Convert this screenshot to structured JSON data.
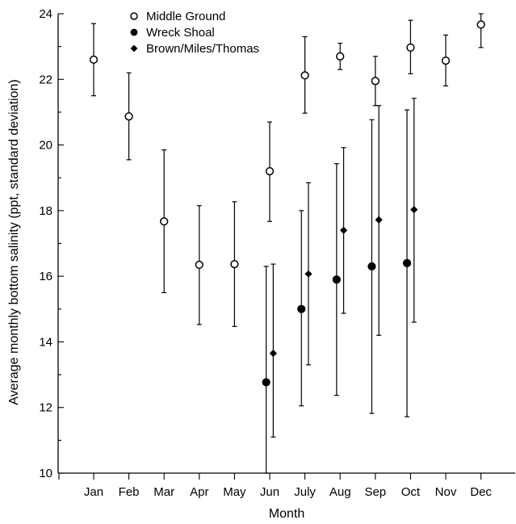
{
  "chart_data": {
    "type": "scatter",
    "xlabel": "Month",
    "ylabel": "Average monthly bottom salinity (ppt, standard deviation)",
    "categories": [
      "Jan",
      "Feb",
      "Mar",
      "Apr",
      "May",
      "Jun",
      "July",
      "Aug",
      "Sep",
      "Oct",
      "Nov",
      "Dec"
    ],
    "ylim": [
      10,
      24
    ],
    "yticks": [
      "10",
      "12",
      "14",
      "16",
      "18",
      "20",
      "22",
      "24"
    ],
    "grid": false,
    "legend_position": "top-left",
    "series": [
      {
        "name": "Middle Ground",
        "marker": "open-circle",
        "points": [
          {
            "month": "Jan",
            "mean": 22.6,
            "low": 21.5,
            "high": 23.7
          },
          {
            "month": "Feb",
            "mean": 20.87,
            "low": 19.55,
            "high": 22.2
          },
          {
            "month": "Mar",
            "mean": 17.67,
            "low": 15.5,
            "high": 19.85
          },
          {
            "month": "Apr",
            "mean": 16.35,
            "low": 14.53,
            "high": 18.15
          },
          {
            "month": "May",
            "mean": 16.37,
            "low": 14.47,
            "high": 18.27
          },
          {
            "month": "Jun",
            "mean": 19.2,
            "low": 17.67,
            "high": 20.7
          },
          {
            "month": "July",
            "mean": 22.12,
            "low": 20.97,
            "high": 23.3
          },
          {
            "month": "Aug",
            "mean": 22.7,
            "low": 22.3,
            "high": 23.1
          },
          {
            "month": "Sep",
            "mean": 21.95,
            "low": 21.2,
            "high": 22.7
          },
          {
            "month": "Oct",
            "mean": 22.97,
            "low": 22.17,
            "high": 23.8
          },
          {
            "month": "Nov",
            "mean": 22.57,
            "low": 21.8,
            "high": 23.35
          },
          {
            "month": "Dec",
            "mean": 23.67,
            "low": 22.97,
            "high": 24.0
          }
        ]
      },
      {
        "name": "Wreck Shoal",
        "marker": "filled-circle",
        "points": [
          {
            "month": "Jun",
            "mean": 12.77,
            "low": 10.0,
            "high": 16.3
          },
          {
            "month": "July",
            "mean": 15.0,
            "low": 12.05,
            "high": 18.0
          },
          {
            "month": "Aug",
            "mean": 15.9,
            "low": 12.37,
            "high": 19.43
          },
          {
            "month": "Sep",
            "mean": 16.3,
            "low": 11.82,
            "high": 20.77
          },
          {
            "month": "Oct",
            "mean": 16.4,
            "low": 11.72,
            "high": 21.07
          }
        ]
      },
      {
        "name": "Brown/Miles/Thomas",
        "marker": "filled-diamond",
        "points": [
          {
            "month": "Jun",
            "mean": 13.65,
            "low": 11.1,
            "high": 16.37
          },
          {
            "month": "July",
            "mean": 16.07,
            "low": 13.3,
            "high": 18.85
          },
          {
            "month": "Aug",
            "mean": 17.4,
            "low": 14.87,
            "high": 19.92
          },
          {
            "month": "Sep",
            "mean": 17.72,
            "low": 14.2,
            "high": 21.2
          },
          {
            "month": "Oct",
            "mean": 18.03,
            "low": 14.6,
            "high": 21.42
          }
        ]
      }
    ]
  }
}
